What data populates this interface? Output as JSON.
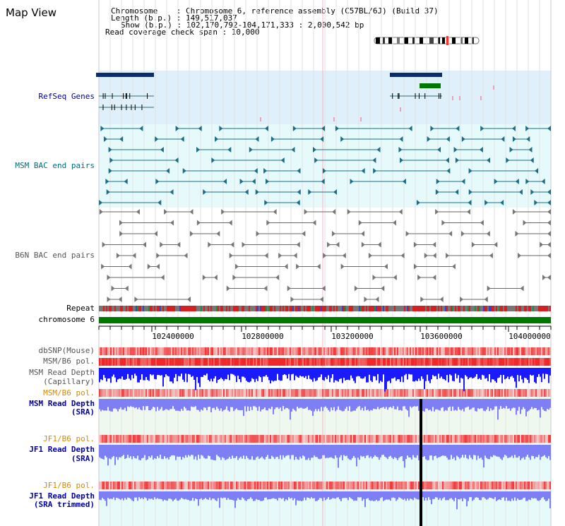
{
  "page_title": "Map View",
  "info": {
    "chromosome": "Chromosome    : Chromosome 6, reference assembly (C57BL/6J) (Build 37)",
    "length": "Length (b.p.) : 149,517,037",
    "show": "Show (b.p.) : 102,170,792-104,171,333 : 2,000,542 bp",
    "coverage": "Read coverage check span : 10,000"
  },
  "tracks": {
    "refseq": "RefSeq Genes",
    "msm_bac": "MSM BAC end pairs",
    "b6n_bac": "B6N BAC end pairs",
    "repeat": "Repeat",
    "chromosome": "chromosome 6",
    "dbsnp": "dbSNP(Mouse)",
    "msm_b6_pol_1": "MSM/B6 pol.",
    "msm_read_cap_1": "MSM Read Depth",
    "msm_read_cap_2": "(Capillary)",
    "msm_b6_pol_2": "MSM/B6 pol.",
    "msm_read_sra_1": "MSM Read Depth",
    "msm_read_sra_2": "(SRA)",
    "jf1_b6_pol_1": "JF1/B6 pol.",
    "jf1_read_sra_1": "JF1 Read Depth",
    "jf1_read_sra_2": "(SRA)",
    "jf1_b6_pol_2": "JF1/B6 pol.",
    "jf1_read_trim_1": "JF1 Read Depth",
    "jf1_read_trim_2": "(SRA trimmed)"
  },
  "axis": {
    "ticks": [
      "102400000",
      "102800000",
      "103200000",
      "103600000",
      "104000000"
    ]
  },
  "colors": {
    "refseq_bg": "#dff0fa",
    "msm_bac_bg": "#e6fafb",
    "depth_blue": "#1a1aff",
    "depth_light": "#7f7ff5",
    "pol_red": "#f04040",
    "chromosome_green": "#007800"
  }
}
